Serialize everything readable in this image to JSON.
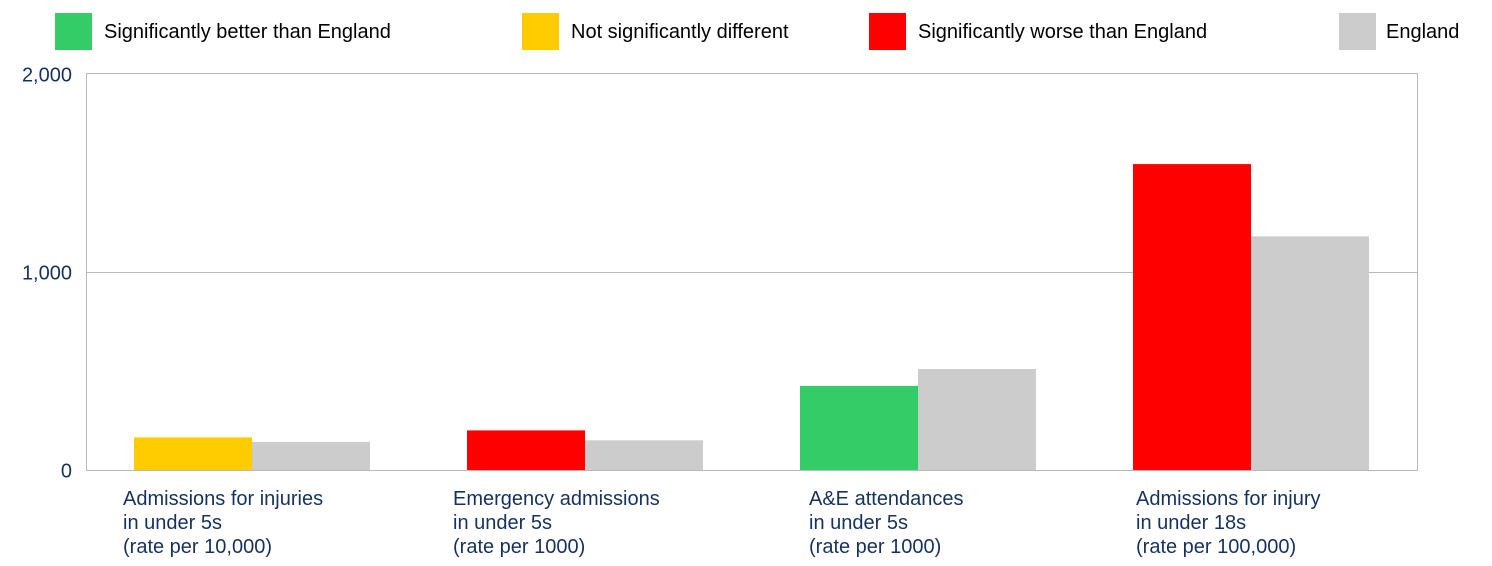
{
  "chart_data": {
    "type": "bar",
    "legend_placement": "top",
    "legend": [
      {
        "label": "Significantly better than England",
        "color": "#33cc66"
      },
      {
        "label": "Not significantly different",
        "color": "#ffcc00"
      },
      {
        "label": "Significantly worse than England",
        "color": "#ff0000"
      },
      {
        "label": "England",
        "color": "#cccccc"
      }
    ],
    "categories": [
      [
        "Admissions for injuries",
        "in under 5s",
        "(rate per 10,000)"
      ],
      [
        "Emergency admissions",
        "in under 5s",
        "(rate per 1000)"
      ],
      [
        "A&E attendances",
        "in under 5s",
        "(rate per 1000)"
      ],
      [
        "Admissions for injury",
        "in under 18s",
        "(rate per 100,000)"
      ]
    ],
    "series": [
      {
        "values": [
          165,
          200,
          425,
          1545
        ],
        "colors": [
          "#ffcc00",
          "#ff0000",
          "#33cc66",
          "#ff0000"
        ]
      },
      {
        "name": "England",
        "values": [
          142,
          150,
          510,
          1180
        ],
        "colors": [
          "#cccccc",
          "#cccccc",
          "#cccccc",
          "#cccccc"
        ]
      }
    ],
    "ylim": [
      0,
      2000
    ],
    "yticks": [
      0,
      1000,
      2000
    ],
    "ytick_labels": [
      "0",
      "1,000",
      "2,000"
    ],
    "grid": true,
    "title": "",
    "xlabel": "",
    "ylabel": ""
  }
}
